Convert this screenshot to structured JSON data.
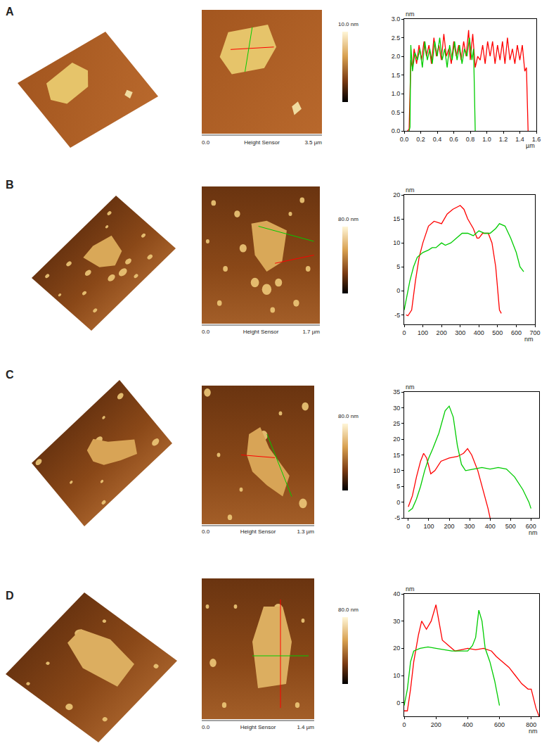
{
  "panels": [
    {
      "label": "A",
      "colorbar_label": "10.0 nm",
      "scale_start": "0.0",
      "scale_caption": "Height Sensor",
      "scale_end": "3.5 µm"
    },
    {
      "label": "B",
      "colorbar_label": "80.0 nm",
      "scale_start": "0.0",
      "scale_caption": "Height Sensor",
      "scale_end": "1.7 µm"
    },
    {
      "label": "C",
      "colorbar_label": "80.0 nm",
      "scale_start": "0.0",
      "scale_caption": "Height Sensor",
      "scale_end": "1.3 µm"
    },
    {
      "label": "D",
      "colorbar_label": "80.0 nm",
      "scale_start": "0.0",
      "scale_caption": "Height Sensor",
      "scale_end": "1.4 µm"
    }
  ],
  "chart_data": [
    {
      "type": "line",
      "x_label": "µm",
      "y_label": "nm",
      "grid": false,
      "xlim": [
        0,
        1.6
      ],
      "xticks": [
        {
          "value": 0,
          "label": "0.0"
        },
        0.2,
        0.4,
        0.6,
        0.8,
        {
          "value": 1,
          "label": "1.0"
        },
        1.2,
        1.4,
        1.6
      ],
      "ylim": [
        0,
        3
      ],
      "yticks": [
        {
          "value": 0,
          "label": "0.0"
        },
        0.5,
        {
          "value": 1,
          "label": "1.0"
        },
        1.5,
        {
          "value": 2,
          "label": "2.0"
        },
        2.5,
        {
          "value": 3,
          "label": "3.0"
        }
      ],
      "series": [
        {
          "color": "#ff0000",
          "x": [
            0.04,
            0.06,
            0.08,
            0.1,
            0.12,
            0.15,
            0.18,
            0.21,
            0.24,
            0.27,
            0.3,
            0.33,
            0.36,
            0.39,
            0.42,
            0.45,
            0.48,
            0.51,
            0.54,
            0.57,
            0.6,
            0.63,
            0.66,
            0.69,
            0.72,
            0.75,
            0.78,
            0.8,
            0.83,
            0.86,
            0.89,
            0.92,
            0.95,
            0.98,
            1.01,
            1.04,
            1.07,
            1.1,
            1.13,
            1.16,
            1.19,
            1.22,
            1.25,
            1.28,
            1.31,
            1.34,
            1.37,
            1.4,
            1.43,
            1.46,
            1.48,
            1.5
          ],
          "values": [
            0,
            0.05,
            1.9,
            1.7,
            2.2,
            1.8,
            2.3,
            1.9,
            2.4,
            2.0,
            2.3,
            1.8,
            2.5,
            2.0,
            2.3,
            1.9,
            2.6,
            2.0,
            2.2,
            1.8,
            2.4,
            2.0,
            2.3,
            1.9,
            2.4,
            2.0,
            2.7,
            1.9,
            2.6,
            1.7,
            2.0,
            1.9,
            2.3,
            1.8,
            2.4,
            2.0,
            2.4,
            1.8,
            2.3,
            1.9,
            2.4,
            1.8,
            2.5,
            1.9,
            2.2,
            1.8,
            2.3,
            1.9,
            2.3,
            1.6,
            1.7,
            0
          ]
        },
        {
          "color": "#00cc00",
          "x": [
            0.06,
            0.07,
            0.08,
            0.1,
            0.13,
            0.16,
            0.19,
            0.22,
            0.25,
            0.28,
            0.31,
            0.34,
            0.37,
            0.4,
            0.43,
            0.46,
            0.49,
            0.52,
            0.55,
            0.58,
            0.61,
            0.64,
            0.67,
            0.7,
            0.73,
            0.76,
            0.79,
            0.82,
            0.84,
            0.86
          ],
          "values": [
            0,
            0.1,
            2.3,
            1.6,
            2.1,
            1.9,
            2.2,
            1.7,
            2.4,
            1.9,
            2.2,
            1.8,
            2.4,
            2.0,
            2.5,
            1.9,
            2.2,
            1.7,
            2.3,
            1.9,
            2.4,
            1.9,
            2.3,
            1.8,
            2.2,
            2.0,
            2.5,
            1.9,
            2.2,
            0
          ]
        }
      ]
    },
    {
      "type": "line",
      "x_label": "nm",
      "y_label": "nm",
      "grid": false,
      "xlim": [
        0,
        700
      ],
      "xticks": [
        0,
        100,
        200,
        300,
        400,
        500,
        600,
        700
      ],
      "ylim": [
        -7,
        20
      ],
      "yticks": [
        -5,
        0,
        5,
        10,
        15,
        20
      ],
      "series": [
        {
          "color": "#ff0000",
          "x": [
            10,
            20,
            40,
            60,
            80,
            100,
            130,
            160,
            200,
            230,
            260,
            300,
            320,
            340,
            370,
            390,
            400,
            420,
            450,
            470,
            490,
            500,
            510,
            520
          ],
          "values": [
            -5,
            -5.2,
            -4,
            2,
            7,
            10,
            13.5,
            14.5,
            14,
            16,
            17,
            17.8,
            17,
            15,
            13,
            11,
            11,
            12,
            12,
            10,
            5,
            0,
            -4,
            -4.7
          ]
        },
        {
          "color": "#00cc00",
          "x": [
            0,
            10,
            30,
            50,
            70,
            100,
            130,
            150,
            170,
            200,
            220,
            250,
            280,
            310,
            340,
            370,
            400,
            430,
            460,
            490,
            510,
            540,
            570,
            600,
            620,
            640
          ],
          "values": [
            -4,
            -2,
            2,
            5,
            7,
            8,
            8.5,
            9,
            9,
            10,
            9.5,
            10,
            11,
            12,
            12,
            11.5,
            12.5,
            12,
            12,
            13,
            14,
            13.5,
            11,
            8,
            5,
            4
          ]
        }
      ]
    },
    {
      "type": "line",
      "x_label": "nm",
      "y_label": "nm",
      "grid": false,
      "xlim": [
        -20,
        640
      ],
      "xticks": [
        0,
        100,
        200,
        300,
        400,
        500,
        600
      ],
      "ylim": [
        -5,
        35
      ],
      "yticks": [
        -5,
        0,
        5,
        10,
        15,
        20,
        25,
        30,
        35
      ],
      "series": [
        {
          "color": "#ff0000",
          "x": [
            0,
            20,
            40,
            60,
            75,
            90,
            110,
            130,
            160,
            200,
            240,
            270,
            290,
            310,
            340,
            370,
            390,
            400
          ],
          "values": [
            -1.5,
            2,
            8,
            13,
            15.5,
            14,
            9,
            10,
            13,
            14,
            14.5,
            15.5,
            17,
            15,
            10,
            3,
            -2,
            -5
          ]
        },
        {
          "color": "#00cc00",
          "x": [
            0,
            20,
            40,
            60,
            80,
            100,
            120,
            150,
            180,
            200,
            220,
            240,
            260,
            280,
            320,
            360,
            400,
            440,
            480,
            520,
            560,
            590,
            600
          ],
          "values": [
            -3,
            -2,
            1,
            5,
            10,
            14,
            17,
            22,
            29,
            30.5,
            27,
            18,
            12,
            10,
            10.5,
            11,
            10.5,
            11,
            10.5,
            8,
            4,
            0,
            -2
          ]
        }
      ]
    },
    {
      "type": "line",
      "x_label": "nm",
      "y_label": "nm",
      "grid": false,
      "xlim": [
        0,
        850
      ],
      "xticks": [
        0,
        200,
        400,
        600,
        800
      ],
      "ylim": [
        -5,
        40
      ],
      "yticks": [
        0,
        10,
        20,
        30,
        40
      ],
      "series": [
        {
          "color": "#ff0000",
          "x": [
            0,
            20,
            40,
            60,
            90,
            110,
            140,
            170,
            200,
            220,
            240,
            280,
            320,
            360,
            400,
            450,
            500,
            550,
            580,
            620,
            660,
            700,
            740,
            780,
            800,
            830,
            850
          ],
          "values": [
            -3,
            -3,
            5,
            15,
            25,
            30,
            27,
            30,
            36,
            30,
            23,
            21,
            19,
            19.5,
            20,
            19.5,
            20,
            19,
            17,
            15,
            13,
            10,
            7,
            5,
            5,
            -2,
            -5
          ]
        },
        {
          "color": "#00cc00",
          "x": [
            0,
            20,
            40,
            60,
            100,
            150,
            200,
            250,
            300,
            350,
            400,
            430,
            450,
            470,
            490,
            510,
            540,
            570,
            600
          ],
          "values": [
            -1,
            5,
            15,
            19,
            20,
            20.5,
            20,
            19.5,
            19,
            19,
            19,
            21,
            24,
            34,
            30,
            20,
            15,
            8,
            -1
          ]
        }
      ]
    }
  ]
}
